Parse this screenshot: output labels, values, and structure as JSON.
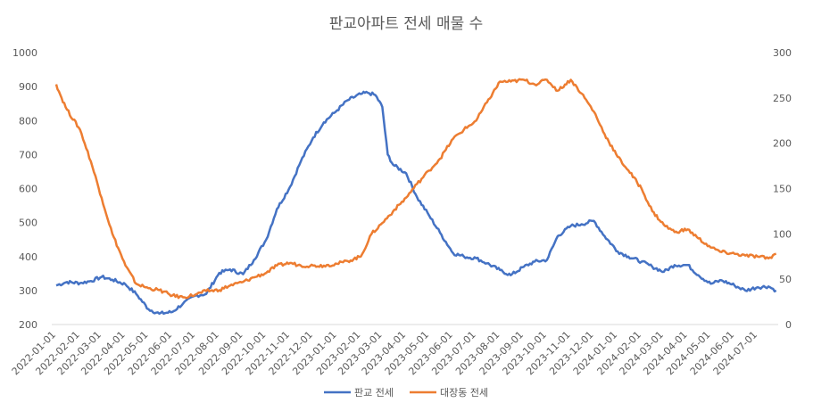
{
  "chart_data": {
    "type": "line",
    "title": "판교아파트 전세 매물 수",
    "x_ticks": [
      "2022-01-01",
      "2022-02-01",
      "2022-03-01",
      "2022-04-01",
      "2022-05-01",
      "2022-06-01",
      "2022-07-01",
      "2022-08-01",
      "2022-09-01",
      "2022-10-01",
      "2022-11-01",
      "2022-12-01",
      "2023-01-01",
      "2023-02-01",
      "2023-03-01",
      "2023-04-01",
      "2023-05-01",
      "2023-06-01",
      "2023-07-01",
      "2023-08-01",
      "2023-09-01",
      "2023-10-01",
      "2023-11-01",
      "2023-12-01",
      "2024-01-01",
      "2024-02-01",
      "2024-03-01",
      "2024-04-01",
      "2024-05-01",
      "2024-06-01",
      "2024-07-01"
    ],
    "y_left": {
      "min": 200,
      "max": 1000,
      "ticks": [
        200,
        300,
        400,
        500,
        600,
        700,
        800,
        900,
        1000
      ]
    },
    "y_right": {
      "min": 0,
      "max": 300,
      "ticks": [
        0,
        50,
        100,
        150,
        200,
        250,
        300
      ]
    },
    "grid": false,
    "legend_position": "bottom",
    "series": [
      {
        "name": "판교 전세",
        "axis": "left",
        "color": "#4472C4",
        "x": [
          "2022-01-01",
          "2022-01-15",
          "2022-02-01",
          "2022-02-15",
          "2022-03-01",
          "2022-03-15",
          "2022-04-01",
          "2022-04-15",
          "2022-05-01",
          "2022-05-15",
          "2022-06-01",
          "2022-06-15",
          "2022-07-01",
          "2022-07-15",
          "2022-08-01",
          "2022-08-15",
          "2022-09-01",
          "2022-09-15",
          "2022-10-01",
          "2022-10-15",
          "2022-11-01",
          "2022-11-15",
          "2022-12-01",
          "2022-12-15",
          "2023-01-01",
          "2023-01-15",
          "2023-02-01",
          "2023-02-10",
          "2023-02-20",
          "2023-03-01",
          "2023-03-08",
          "2023-03-15",
          "2023-04-01",
          "2023-04-15",
          "2023-05-01",
          "2023-05-15",
          "2023-06-01",
          "2023-06-15",
          "2023-07-01",
          "2023-07-15",
          "2023-08-01",
          "2023-08-15",
          "2023-09-01",
          "2023-09-15",
          "2023-10-01",
          "2023-10-15",
          "2023-11-01",
          "2023-11-15",
          "2023-12-01",
          "2023-12-15",
          "2024-01-01",
          "2024-01-15",
          "2024-02-01",
          "2024-02-15",
          "2024-03-01",
          "2024-03-15",
          "2024-04-01",
          "2024-04-15",
          "2024-05-01",
          "2024-05-15",
          "2024-06-01",
          "2024-06-15",
          "2024-07-01",
          "2024-07-15",
          "2024-07-25"
        ],
        "values": [
          315,
          325,
          322,
          328,
          340,
          332,
          318,
          290,
          245,
          232,
          237,
          262,
          285,
          290,
          352,
          362,
          348,
          390,
          450,
          540,
          605,
          680,
          750,
          795,
          830,
          860,
          878,
          882,
          875,
          840,
          700,
          670,
          645,
          575,
          520,
          470,
          410,
          400,
          395,
          380,
          360,
          345,
          370,
          385,
          390,
          460,
          490,
          495,
          505,
          460,
          415,
          400,
          385,
          370,
          355,
          375,
          375,
          345,
          320,
          330,
          315,
          300,
          310,
          312,
          300
        ]
      },
      {
        "name": "대장동 전세",
        "axis": "right",
        "color": "#ED7D31",
        "x": [
          "2022-01-01",
          "2022-01-08",
          "2022-01-15",
          "2022-02-01",
          "2022-02-15",
          "2022-03-01",
          "2022-03-15",
          "2022-04-01",
          "2022-04-15",
          "2022-05-01",
          "2022-05-15",
          "2022-06-01",
          "2022-06-15",
          "2022-07-01",
          "2022-07-15",
          "2022-08-01",
          "2022-08-15",
          "2022-09-01",
          "2022-09-15",
          "2022-10-01",
          "2022-10-15",
          "2022-11-01",
          "2022-11-15",
          "2022-12-01",
          "2022-12-15",
          "2023-01-01",
          "2023-01-15",
          "2023-02-01",
          "2023-02-15",
          "2023-03-01",
          "2023-03-15",
          "2023-04-01",
          "2023-04-15",
          "2023-05-01",
          "2023-05-15",
          "2023-06-01",
          "2023-06-15",
          "2023-07-01",
          "2023-07-15",
          "2023-08-01",
          "2023-08-15",
          "2023-09-01",
          "2023-09-15",
          "2023-10-01",
          "2023-10-15",
          "2023-11-01",
          "2023-11-15",
          "2023-12-01",
          "2023-12-15",
          "2024-01-01",
          "2024-01-15",
          "2024-02-01",
          "2024-02-15",
          "2024-03-01",
          "2024-03-15",
          "2024-04-01",
          "2024-04-15",
          "2024-05-01",
          "2024-05-15",
          "2024-06-01",
          "2024-06-15",
          "2024-07-01",
          "2024-07-15",
          "2024-07-25"
        ],
        "values": [
          265,
          250,
          237,
          215,
          180,
          140,
          100,
          65,
          45,
          40,
          38,
          32,
          30,
          33,
          37,
          38,
          43,
          47,
          52,
          57,
          65,
          68,
          65,
          65,
          65,
          67,
          70,
          75,
          100,
          112,
          125,
          140,
          155,
          170,
          183,
          205,
          215,
          225,
          245,
          268,
          268,
          270,
          265,
          270,
          258,
          270,
          255,
          235,
          210,
          185,
          170,
          150,
          125,
          110,
          102,
          105,
          95,
          85,
          80,
          78,
          76,
          75,
          73,
          78
        ]
      }
    ]
  }
}
